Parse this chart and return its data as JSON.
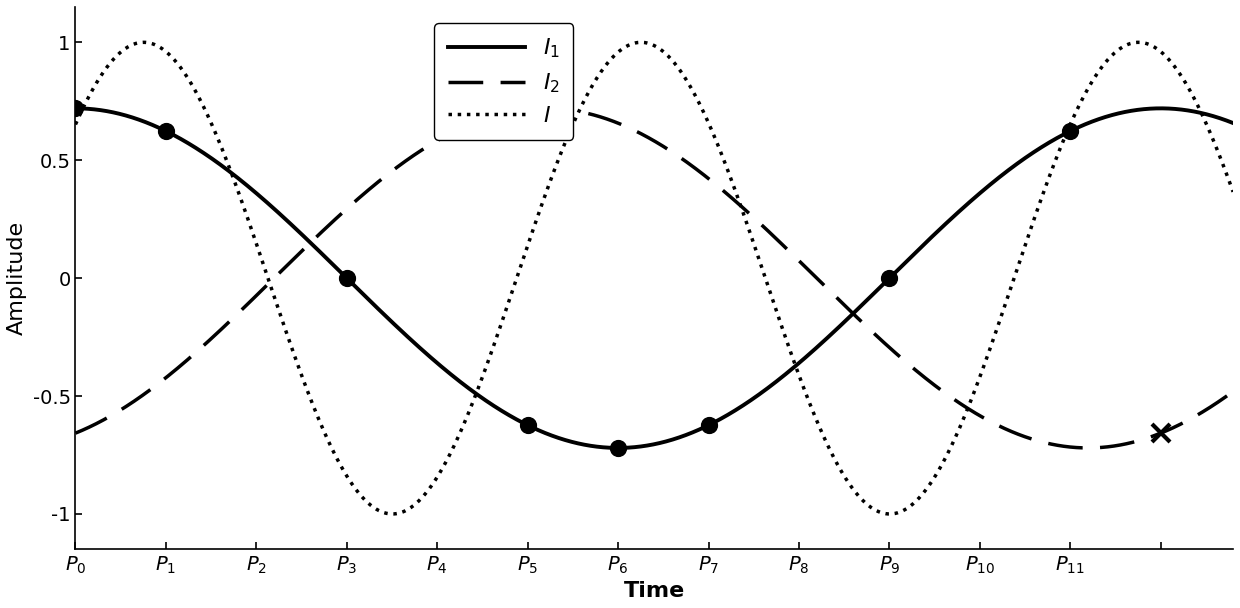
{
  "xlabel": "Time",
  "ylabel": "Amplitude",
  "xlim": [
    0,
    12.8
  ],
  "ylim": [
    -1.15,
    1.15
  ],
  "yticks": [
    -1,
    -0.5,
    0,
    0.5,
    1
  ],
  "xtick_positions": [
    0,
    1,
    2,
    3,
    4,
    5,
    6,
    7,
    8,
    9,
    10,
    11,
    12
  ],
  "xtick_labels": [
    "$P_0$",
    "$P_1$",
    "$P_2$",
    "$P_3$",
    "$P_4$",
    "$P_5$",
    "$P_6$",
    "$P_7$",
    "$P_8$",
    "$P_9$",
    "$P_{10}$",
    "$P_{11}$",
    ""
  ],
  "legend_labels": [
    "$I_1$",
    "$I_2$",
    "$I$"
  ],
  "line_color": "#000000",
  "lw_solid": 2.8,
  "lw_dashed": 2.5,
  "lw_dotted": 2.5,
  "dot_size": 130,
  "figsize": [
    12.4,
    6.08
  ],
  "dpi": 100,
  "I1_amp": 0.72,
  "I1_period": 12.0,
  "I1_phase": 0.0,
  "I2_amp": 0.72,
  "I2_period": 12.0,
  "I2_phase": -1.15,
  "I_amp": 1.0,
  "I_period": 5.5,
  "I_phase": 0.71,
  "dot_x": [
    0,
    1,
    3,
    5,
    6,
    7,
    9,
    11
  ],
  "cross_x": [
    12.0
  ]
}
